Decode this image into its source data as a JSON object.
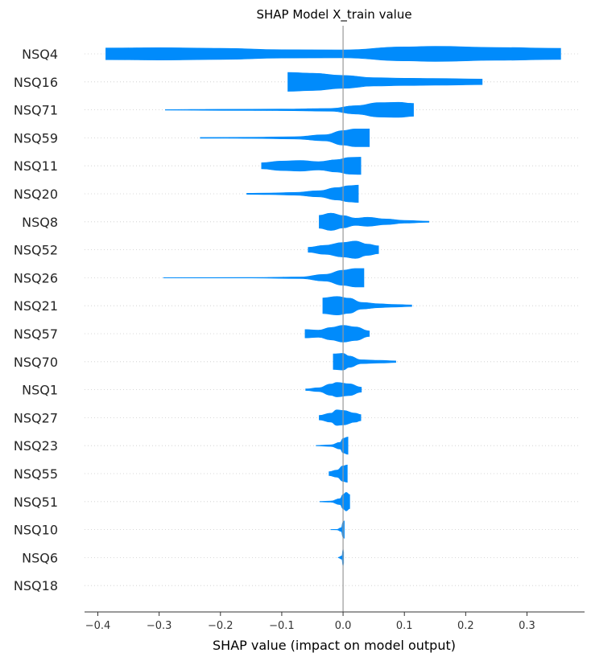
{
  "chart_data": {
    "type": "violin",
    "title": "SHAP Model X_train value",
    "xlabel": "SHAP value (impact on model output)",
    "ylabel": "",
    "xlim": [
      -0.42,
      0.39
    ],
    "x_ticks": [
      -0.4,
      -0.3,
      -0.2,
      -0.1,
      0.0,
      0.1,
      0.2,
      0.3
    ],
    "x_tick_labels": [
      "−0.4",
      "−0.3",
      "−0.2",
      "−0.1",
      "0.0",
      "0.1",
      "0.2",
      "0.3"
    ],
    "grid": "dotted horizontal lines per feature",
    "color": "#008bfb",
    "zero_line_color": "#999999",
    "features": [
      {
        "name": "NSQ4",
        "profile": [
          [
            -0.387,
            0.42
          ],
          [
            -0.3,
            0.44
          ],
          [
            -0.2,
            0.4
          ],
          [
            -0.1,
            0.3
          ],
          [
            0.0,
            0.28
          ],
          [
            0.1,
            0.5
          ],
          [
            0.15,
            0.54
          ],
          [
            0.25,
            0.46
          ],
          [
            0.355,
            0.4
          ]
        ]
      },
      {
        "name": "NSQ16",
        "profile": [
          [
            -0.09,
            0.68
          ],
          [
            -0.05,
            0.62
          ],
          [
            0.0,
            0.46
          ],
          [
            0.05,
            0.3
          ],
          [
            0.1,
            0.26
          ],
          [
            0.15,
            0.24
          ],
          [
            0.227,
            0.2
          ]
        ]
      },
      {
        "name": "NSQ71",
        "profile": [
          [
            -0.29,
            0.02
          ],
          [
            -0.2,
            0.04
          ],
          [
            -0.1,
            0.06
          ],
          [
            -0.02,
            0.1
          ],
          [
            0.02,
            0.3
          ],
          [
            0.06,
            0.52
          ],
          [
            0.09,
            0.54
          ],
          [
            0.115,
            0.46
          ]
        ]
      },
      {
        "name": "NSQ59",
        "profile": [
          [
            -0.233,
            0.03
          ],
          [
            -0.15,
            0.04
          ],
          [
            -0.08,
            0.08
          ],
          [
            -0.03,
            0.22
          ],
          [
            0.0,
            0.52
          ],
          [
            0.02,
            0.64
          ],
          [
            0.043,
            0.64
          ]
        ]
      },
      {
        "name": "NSQ11",
        "profile": [
          [
            -0.133,
            0.22
          ],
          [
            -0.1,
            0.34
          ],
          [
            -0.07,
            0.38
          ],
          [
            -0.04,
            0.3
          ],
          [
            -0.01,
            0.44
          ],
          [
            0.01,
            0.6
          ],
          [
            0.029,
            0.62
          ]
        ]
      },
      {
        "name": "NSQ20",
        "profile": [
          [
            -0.157,
            0.04
          ],
          [
            -0.12,
            0.06
          ],
          [
            -0.08,
            0.1
          ],
          [
            -0.04,
            0.22
          ],
          [
            -0.01,
            0.44
          ],
          [
            0.01,
            0.58
          ],
          [
            0.025,
            0.62
          ]
        ]
      },
      {
        "name": "NSQ8",
        "profile": [
          [
            -0.039,
            0.46
          ],
          [
            -0.02,
            0.62
          ],
          [
            0.0,
            0.44
          ],
          [
            0.02,
            0.26
          ],
          [
            0.04,
            0.32
          ],
          [
            0.07,
            0.2
          ],
          [
            0.1,
            0.1
          ],
          [
            0.14,
            0.04
          ]
        ]
      },
      {
        "name": "NSQ52",
        "profile": [
          [
            -0.057,
            0.18
          ],
          [
            -0.03,
            0.32
          ],
          [
            0.0,
            0.52
          ],
          [
            0.02,
            0.62
          ],
          [
            0.04,
            0.4
          ],
          [
            0.058,
            0.28
          ]
        ]
      },
      {
        "name": "NSQ26",
        "profile": [
          [
            -0.293,
            0.01
          ],
          [
            -0.15,
            0.02
          ],
          [
            -0.07,
            0.06
          ],
          [
            -0.03,
            0.24
          ],
          [
            0.0,
            0.54
          ],
          [
            0.02,
            0.66
          ],
          [
            0.034,
            0.66
          ]
        ]
      },
      {
        "name": "NSQ21",
        "profile": [
          [
            -0.033,
            0.56
          ],
          [
            -0.01,
            0.66
          ],
          [
            0.01,
            0.54
          ],
          [
            0.03,
            0.24
          ],
          [
            0.06,
            0.14
          ],
          [
            0.08,
            0.1
          ],
          [
            0.112,
            0.06
          ]
        ]
      },
      {
        "name": "NSQ57",
        "profile": [
          [
            -0.062,
            0.3
          ],
          [
            -0.04,
            0.26
          ],
          [
            -0.02,
            0.44
          ],
          [
            0.0,
            0.6
          ],
          [
            0.02,
            0.48
          ],
          [
            0.043,
            0.2
          ]
        ]
      },
      {
        "name": "NSQ70",
        "profile": [
          [
            -0.016,
            0.56
          ],
          [
            0.0,
            0.6
          ],
          [
            0.01,
            0.4
          ],
          [
            0.03,
            0.14
          ],
          [
            0.06,
            0.1
          ],
          [
            0.086,
            0.06
          ]
        ]
      },
      {
        "name": "NSQ1",
        "profile": [
          [
            -0.061,
            0.06
          ],
          [
            -0.04,
            0.14
          ],
          [
            -0.02,
            0.4
          ],
          [
            -0.01,
            0.52
          ],
          [
            0.01,
            0.42
          ],
          [
            0.03,
            0.18
          ]
        ]
      },
      {
        "name": "NSQ27",
        "profile": [
          [
            -0.039,
            0.16
          ],
          [
            -0.02,
            0.32
          ],
          [
            -0.01,
            0.56
          ],
          [
            0.0,
            0.52
          ],
          [
            0.02,
            0.32
          ],
          [
            0.029,
            0.22
          ]
        ]
      },
      {
        "name": "NSQ23",
        "profile": [
          [
            -0.044,
            0.02
          ],
          [
            -0.02,
            0.06
          ],
          [
            -0.005,
            0.24
          ],
          [
            0.0,
            0.52
          ],
          [
            0.008,
            0.62
          ]
        ]
      },
      {
        "name": "NSQ55",
        "profile": [
          [
            -0.023,
            0.14
          ],
          [
            -0.01,
            0.26
          ],
          [
            0.0,
            0.56
          ],
          [
            0.007,
            0.62
          ]
        ]
      },
      {
        "name": "NSQ51",
        "profile": [
          [
            -0.038,
            0.02
          ],
          [
            -0.02,
            0.04
          ],
          [
            -0.005,
            0.22
          ],
          [
            0.0,
            0.52
          ],
          [
            0.005,
            0.66
          ],
          [
            0.011,
            0.5
          ]
        ]
      },
      {
        "name": "NSQ10",
        "profile": [
          [
            -0.02,
            0.01
          ],
          [
            -0.01,
            0.02
          ],
          [
            -0.003,
            0.14
          ],
          [
            0.0,
            0.56
          ],
          [
            0.002,
            0.62
          ]
        ]
      },
      {
        "name": "NSQ6",
        "profile": [
          [
            -0.008,
            0.01
          ],
          [
            -0.002,
            0.12
          ],
          [
            0.0,
            0.62
          ],
          [
            0.001,
            0.4
          ]
        ]
      },
      {
        "name": "NSQ18",
        "profile": [
          [
            0.0,
            0.0
          ]
        ]
      }
    ]
  }
}
